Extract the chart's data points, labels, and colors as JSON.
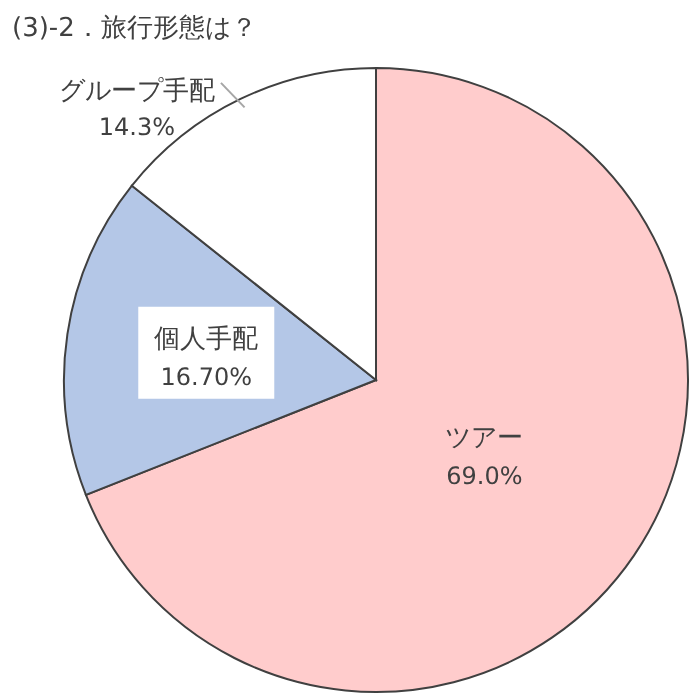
{
  "chart_data": {
    "type": "pie",
    "title": "(3)-2．旅行形態は？",
    "categories": [
      "ツアー",
      "個人手配",
      "グループ手配"
    ],
    "values": [
      69.0,
      16.7,
      14.3
    ],
    "value_labels": [
      "69.0%",
      "16.70%",
      "14.3%"
    ],
    "colors": [
      "#ffcccc",
      "#b4c7e7",
      "#ffffff"
    ]
  }
}
